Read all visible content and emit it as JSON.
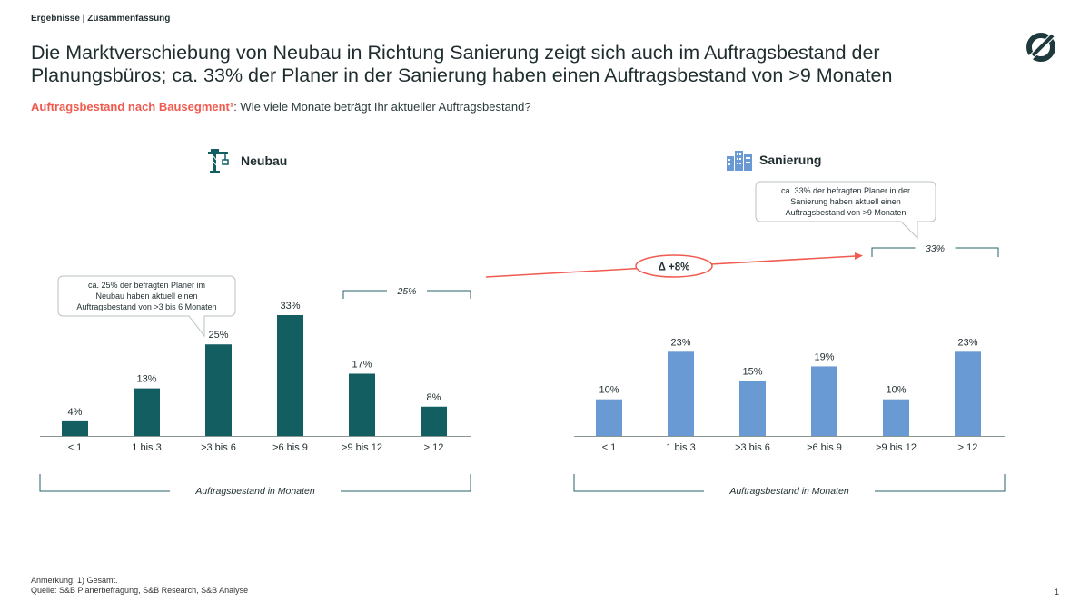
{
  "header": {
    "breadcrumb": "Ergebnisse | Zusammenfassung",
    "title": "Die Marktverschiebung von Neubau in Richtung Sanierung zeigt sich auch im Auftragsbestand der Planungsbüros; ca. 33% der Planer in der Sanierung haben einen Auftragsbestand von >9 Monaten",
    "subtitle_highlight": "Auftragsbestand nach Bausegment¹",
    "subtitle_rest": ": Wie viele Monate beträgt Ihr aktueller Auftragsbestand?"
  },
  "logo": {
    "icon": "slashed-circle-logo",
    "color": "#1f3a3d"
  },
  "colors": {
    "neubau": "#125e60",
    "sanierung": "#6a9ad4",
    "accent": "#f05a4f",
    "bracket": "#27616b",
    "text": "#1f2d2f"
  },
  "delta": {
    "label": "Δ +8%"
  },
  "chart_data": [
    {
      "type": "bar",
      "title": "Neubau",
      "icon": "crane-icon",
      "categories": [
        "< 1",
        "1 bis 3",
        ">3 bis 6",
        ">6 bis 9",
        ">9 bis 12",
        "> 12"
      ],
      "values": [
        4,
        13,
        25,
        33,
        17,
        8
      ],
      "value_labels": [
        "4%",
        "13%",
        "25%",
        "33%",
        "17%",
        "8%"
      ],
      "ylim": [
        0,
        33
      ],
      "xlabel": "Auftragsbestand  in Monaten",
      "bracket_label": "25%",
      "callout": [
        "ca. 25% der befragten Planer im",
        "Neubau haben aktuell einen",
        "Auftragsbestand von >3 bis 6 Monaten"
      ]
    },
    {
      "type": "bar",
      "title": "Sanierung",
      "icon": "buildings-icon",
      "categories": [
        "< 1",
        "1 bis 3",
        ">3 bis 6",
        ">6 bis 9",
        ">9 bis 12",
        "> 12"
      ],
      "values": [
        10,
        23,
        15,
        19,
        10,
        23
      ],
      "value_labels": [
        "10%",
        "23%",
        "15%",
        "19%",
        "10%",
        "23%"
      ],
      "ylim": [
        0,
        33
      ],
      "xlabel": "Auftragsbestand  in Monaten",
      "bracket_label": "33%",
      "callout": [
        "ca. 33% der befragten Planer in der",
        "Sanierung haben aktuell einen",
        "Auftragsbestand von >9 Monaten"
      ]
    }
  ],
  "footer": {
    "note": "Anmerkung: 1) Gesamt.",
    "source": "Quelle: S&B Planerbefragung, S&B Research, S&B Analyse",
    "page": "1"
  }
}
